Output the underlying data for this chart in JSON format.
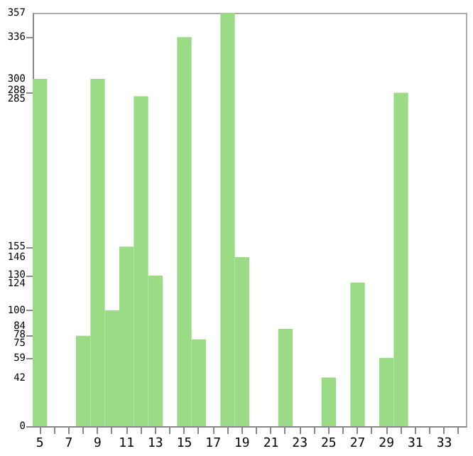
{
  "chart_data": {
    "type": "bar",
    "categories": [
      "5",
      null,
      "7",
      null,
      "9",
      null,
      "11",
      null,
      "13",
      null,
      "15",
      null,
      "17",
      null,
      "19",
      null,
      "21",
      null,
      "23",
      null,
      "25",
      null,
      "27",
      null,
      "29",
      null,
      "31",
      null,
      "33",
      null
    ],
    "values": [
      300,
      0,
      0,
      78,
      300,
      100,
      155,
      285,
      130,
      0,
      336,
      75,
      0,
      357,
      146,
      0,
      0,
      84,
      0,
      0,
      42,
      0,
      124,
      0,
      59,
      288,
      0,
      0,
      0,
      0
    ],
    "color": "#9bdb85",
    "ylim": [
      0,
      357
    ],
    "yticks": [
      0,
      42,
      59,
      75,
      78,
      84,
      100,
      124,
      130,
      146,
      155,
      285,
      288,
      300,
      336,
      357
    ],
    "grid": false
  }
}
